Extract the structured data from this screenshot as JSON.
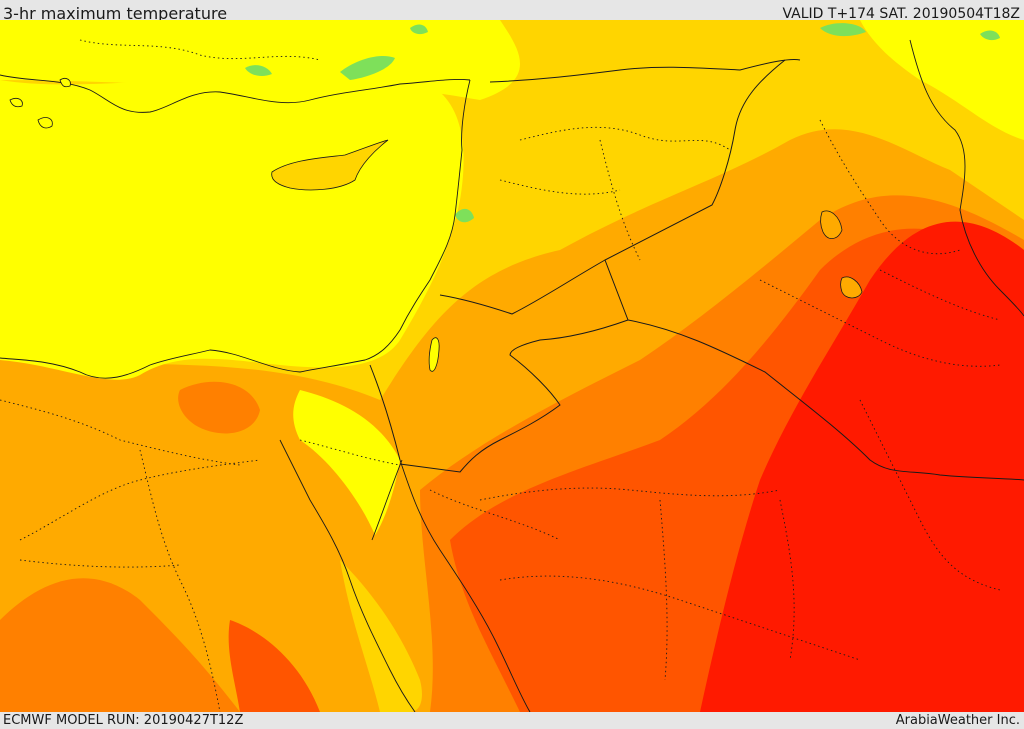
{
  "header": {
    "title": "3-hr maximum temperature",
    "valid": "VALID T+174 SAT. 20190504T18Z"
  },
  "footer": {
    "model_run": "ECMWF MODEL RUN: 20190427T12Z",
    "credit": "ArabiaWeather Inc."
  },
  "palette": {
    "mild_green": "#7ee05a",
    "warm_yellow": "#ffff00",
    "yellow_orange": "#ffd500",
    "orange": "#ffaa00",
    "dark_orange": "#ff8000",
    "red_orange": "#ff5500",
    "red": "#ff1a00",
    "border_line": "#1a1a1a"
  }
}
